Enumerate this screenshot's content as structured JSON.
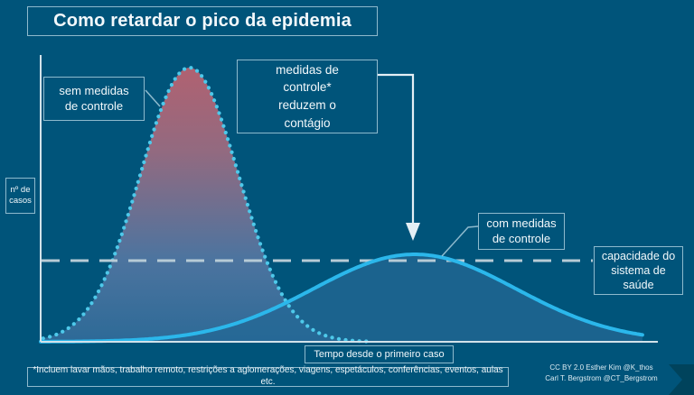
{
  "title": "Como retardar o pico da epidemia",
  "colors": {
    "background": "#00547a",
    "text": "#f2f8fb",
    "axis": "#d2e2ea",
    "capacity_line": "#b7cbd6",
    "curve_no_measures_gradient": [
      "#b26170",
      "#926a80",
      "#4d749f",
      "#2d6a97"
    ],
    "curve_no_measures_outline": "#4ec9ea",
    "curve_with_measures_line": "#2bb7eb",
    "curve_with_measures_fill": "rgba(36,104,150,0.75)",
    "annotation_arrow": "#e4eff5",
    "logo": "#00435c"
  },
  "chart_data": {
    "type": "area",
    "title": "Como retardar o pico da epidemia",
    "xlabel": "Tempo desde o primeiro caso",
    "ylabel_lines": [
      "nº de",
      "casos"
    ],
    "grid": false,
    "legend_position": "annotation-boxes",
    "x_axis_ticks": [],
    "y_axis_ticks": [],
    "series": [
      {
        "name": "sem medidas de controle",
        "shape": "gaussian",
        "style": "dotted-outline-gradient-fill",
        "center": 0.241,
        "sigma": 0.08,
        "peak": 1.0,
        "range": [
          0.004,
          0.53
        ]
      },
      {
        "name": "com medidas de controle",
        "shape": "gaussian",
        "style": "solid-line-blue-fill",
        "center": 0.606,
        "sigma": 0.164,
        "peak": 0.319,
        "range": [
          0.0,
          0.975
        ]
      }
    ],
    "capacity_line": {
      "label_lines": [
        "capacidade do",
        "sistema de",
        "saúde"
      ],
      "level": 0.296,
      "style": "dashed"
    }
  },
  "annotations": {
    "sem_medidas": {
      "lines": [
        "sem medidas",
        "de controle"
      ]
    },
    "medidas_reduzem": {
      "lines": [
        "medidas de",
        "controle*",
        "reduzem o",
        "contágio"
      ]
    },
    "com_medidas": {
      "lines": [
        "com medidas",
        "de controle"
      ]
    },
    "footnote": "*Incluem lavar mãos, trabalho remoto, restrições a aglomerações, viagens, espetáculos, conferências, eventos, aulas etc.",
    "credits": {
      "line1": "CC BY 2.0  Esther Kim  @K_thos",
      "line2": "Carl T. Bergstrom  @CT_Bergstrom"
    }
  }
}
